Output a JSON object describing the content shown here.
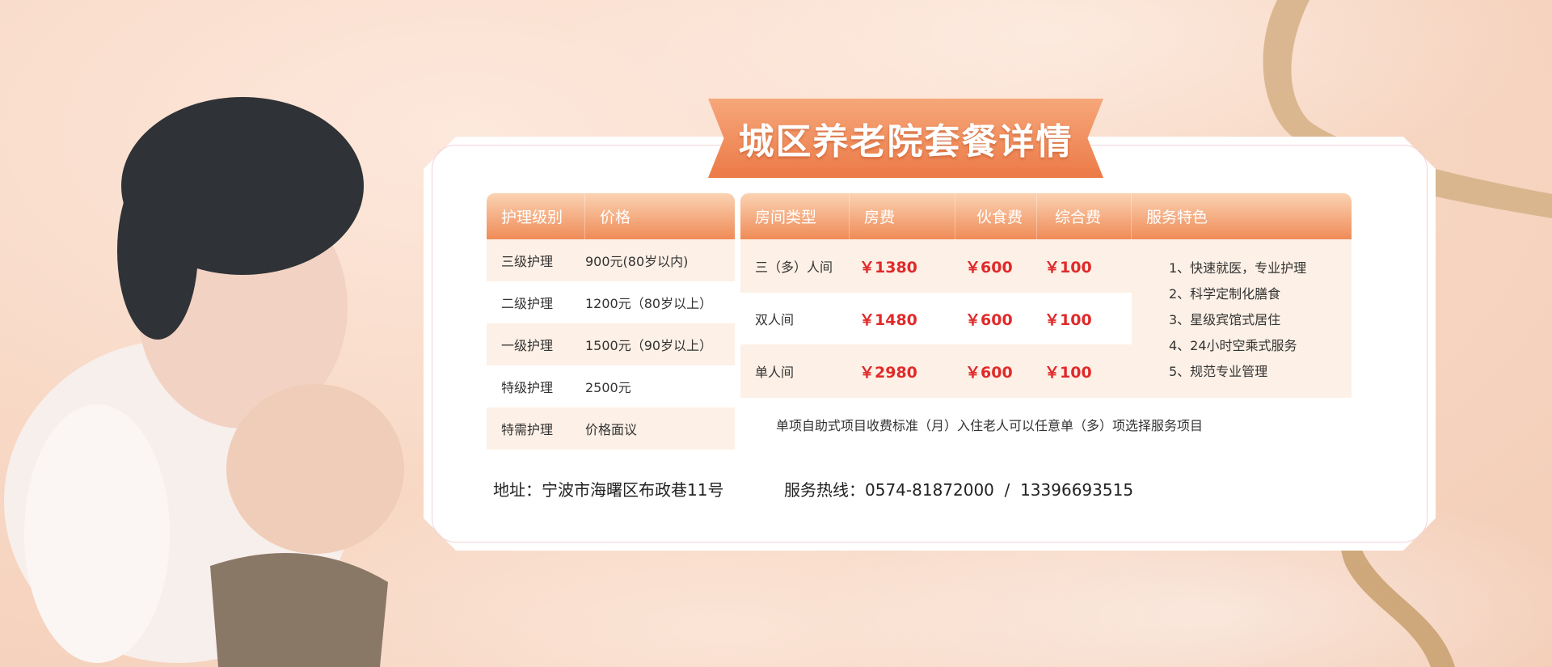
{
  "title": "城区养老院套餐详情",
  "care_table": {
    "headers": [
      "护理级别",
      "价格"
    ],
    "rows": [
      [
        "三级护理",
        "900元(80岁以内)"
      ],
      [
        "二级护理",
        "1200元（80岁以上）"
      ],
      [
        "一级护理",
        "1500元（90岁以上）"
      ],
      [
        "特级护理",
        "2500元"
      ],
      [
        "特需护理",
        "价格面议"
      ]
    ]
  },
  "room_table": {
    "headers": [
      "房间类型",
      "房费",
      "伙食费",
      "综合费",
      "服务特色"
    ],
    "rows": [
      [
        "三（多）人间",
        "￥1380",
        "￥600",
        "￥100"
      ],
      [
        "双人间",
        "￥1480",
        "￥600",
        "￥100"
      ],
      [
        "单人间",
        "￥2980",
        "￥600",
        "￥100"
      ]
    ],
    "features": [
      "1、快速就医，专业护理",
      "2、科学定制化膳食",
      "3、星级宾馆式居住",
      "4、24小时空乘式服务",
      "5、规范专业管理"
    ],
    "footnote": "单项自助式项目收费标准（月）入住老人可以任意单（多）项选择服务项目"
  },
  "address": "地址：宁波市海曙区布政巷11号",
  "hotline": "服务热线：0574-81872000  /  13396693515",
  "colors": {
    "accent": "#ef8b57",
    "price": "#e02a2a"
  }
}
